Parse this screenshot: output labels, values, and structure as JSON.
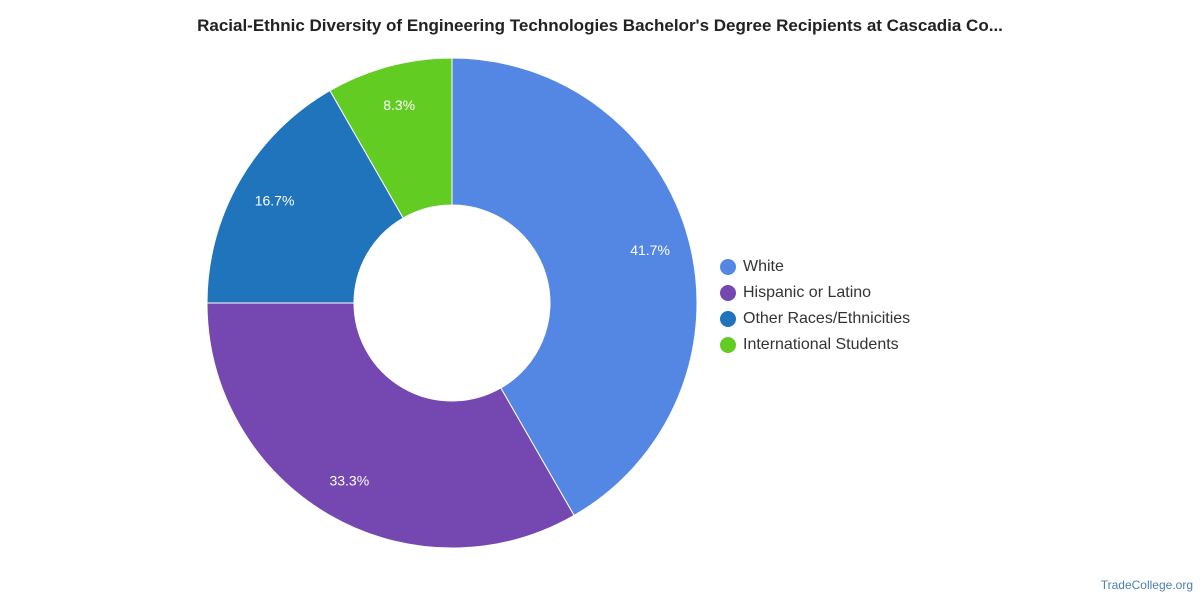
{
  "chart_data": {
    "type": "pie",
    "title": "Racial-Ethnic Diversity of Engineering Technologies Bachelor's Degree Recipients at Cascadia Co...",
    "donut": true,
    "legend_position": "right",
    "slices": [
      {
        "name": "White",
        "value": 41.7,
        "label": "41.7%",
        "color": "#5487e3"
      },
      {
        "name": "Hispanic or Latino",
        "value": 33.3,
        "label": "33.3%",
        "color": "#7547b0"
      },
      {
        "name": "Other Races/Ethnicities",
        "value": 16.7,
        "label": "16.7%",
        "color": "#1f74bb"
      },
      {
        "name": "International Students",
        "value": 8.3,
        "label": "8.3%",
        "color": "#62cc23"
      }
    ]
  },
  "source": "TradeCollege.org"
}
